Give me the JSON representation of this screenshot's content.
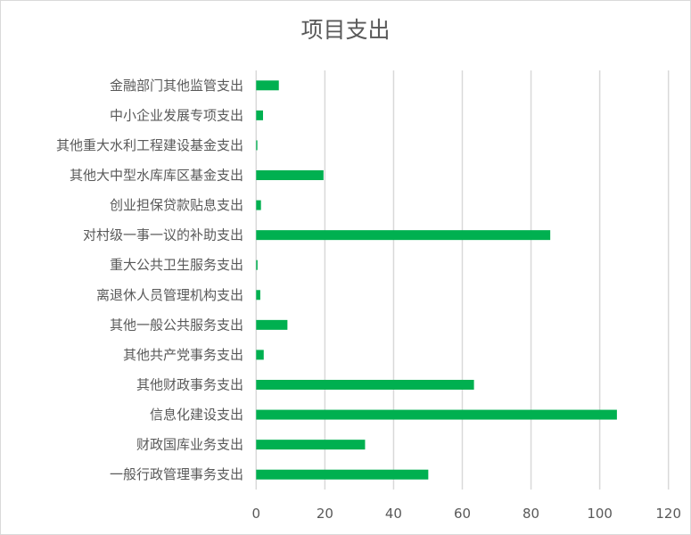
{
  "chart_data": {
    "type": "bar",
    "orientation": "horizontal",
    "title": "项目支出",
    "xlabel": "",
    "ylabel": "",
    "xlim": [
      0,
      120
    ],
    "xticks": [
      0,
      20,
      40,
      60,
      80,
      100,
      120
    ],
    "grid": true,
    "legend": "none",
    "bar_color": "#00b050",
    "categories": [
      "金融部门其他监管支出",
      "中小企业发展专项支出",
      "其他重大水利工程建设基金支出",
      "其他大中型水库库区基金支出",
      "创业担保贷款贴息支出",
      "对村级一事一议的补助支出",
      "重大公共卫生服务支出",
      "离退休人员管理机构支出",
      "其他一般公共服务支出",
      "其他共产党事务支出",
      "其他财政事务支出",
      "信息化建设支出",
      "财政国库业务支出",
      "一般行政管理事务支出"
    ],
    "values": [
      6.6,
      2.0,
      0.35,
      19.6,
      1.4,
      85.6,
      0.4,
      1.2,
      9.1,
      2.2,
      63.4,
      105.0,
      31.7,
      50.1
    ]
  }
}
